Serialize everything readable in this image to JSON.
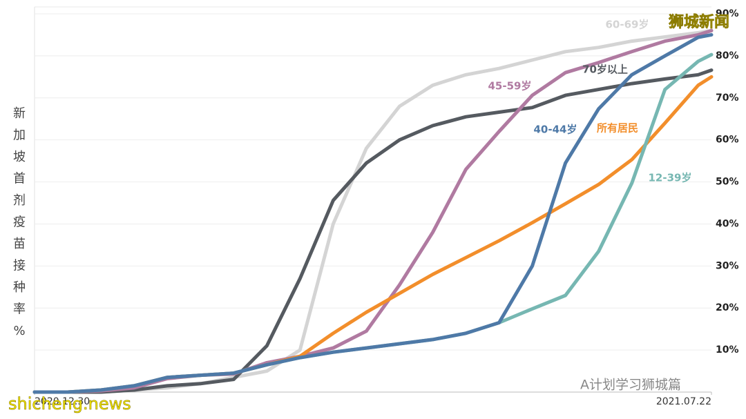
{
  "chart_data": {
    "type": "line",
    "y_label": "新加坡首剂疫苗接种率%",
    "watermarks": [
      "狮城新闻",
      "shicheng.news",
      "A计划学习狮城篇"
    ],
    "x": [
      0,
      10,
      20,
      30,
      40,
      50,
      60,
      70,
      80,
      90,
      100,
      110,
      120,
      130,
      140,
      150,
      160,
      170,
      180,
      190,
      200,
      204
    ],
    "xlim": [
      0,
      204
    ],
    "xticks": [
      {
        "value": 0,
        "label": "2020.12.30"
      },
      {
        "value": 204,
        "label": "2021.07.22"
      }
    ],
    "ylim": [
      0,
      90
    ],
    "yticks": [
      {
        "value": 10,
        "label": "10%"
      },
      {
        "value": 20,
        "label": "20%"
      },
      {
        "value": 30,
        "label": "30%"
      },
      {
        "value": 40,
        "label": "40%"
      },
      {
        "value": 50,
        "label": "50%"
      },
      {
        "value": 60,
        "label": "60%"
      },
      {
        "value": 70,
        "label": "70%"
      },
      {
        "value": 80,
        "label": "80%"
      },
      {
        "value": 90,
        "label": "90%"
      }
    ],
    "grid": true,
    "series": [
      {
        "name": "60-69岁",
        "color": "#d4d4d4",
        "values": [
          0,
          0,
          0,
          0.5,
          1,
          2,
          3.5,
          5,
          10,
          40,
          58,
          68,
          73,
          75.5,
          77,
          79,
          81,
          82,
          83.5,
          84.5,
          85.5,
          86
        ]
      },
      {
        "name": "70岁以上",
        "color": "#555a60",
        "values": [
          0,
          0,
          0,
          0.5,
          1.5,
          2,
          3,
          11,
          27,
          45.6,
          54.5,
          60,
          63.4,
          65.5,
          66.6,
          67.7,
          70.6,
          72,
          73.4,
          74.5,
          75.5,
          76.6
        ]
      },
      {
        "name": "45-59岁",
        "color": "#b07aa1",
        "values": [
          0,
          0,
          0.3,
          1,
          3.2,
          4,
          4.3,
          7,
          8.5,
          10.5,
          14.5,
          25.5,
          38,
          53,
          62,
          70.6,
          76,
          78.4,
          81,
          83.5,
          85,
          86
        ]
      },
      {
        "name": "40-44岁",
        "color": "#4e79a7",
        "values": [
          0,
          0,
          0.5,
          1.5,
          3.5,
          4,
          4.5,
          6.5,
          8.2,
          9.5,
          10.5,
          11.5,
          12.5,
          14,
          16.5,
          30,
          54.5,
          67.4,
          75.5,
          80,
          84.4,
          85
        ]
      },
      {
        "name": "所有居民",
        "color": "#f28e2b",
        "values": [
          0,
          0,
          0.5,
          1.5,
          3.5,
          4,
          4.5,
          6.5,
          8.5,
          14,
          19,
          23.5,
          28,
          32,
          36,
          40.3,
          44.8,
          49.4,
          55.3,
          64,
          73,
          75
        ]
      },
      {
        "name": "12-39岁",
        "color": "#76b7b2",
        "values": [
          0,
          0,
          0.5,
          1.5,
          3.5,
          4,
          4.5,
          6.5,
          8.2,
          9.5,
          10.5,
          11.5,
          12.5,
          14,
          16.5,
          19.8,
          23,
          33.5,
          49.7,
          72,
          78.7,
          80.3
        ]
      }
    ]
  }
}
